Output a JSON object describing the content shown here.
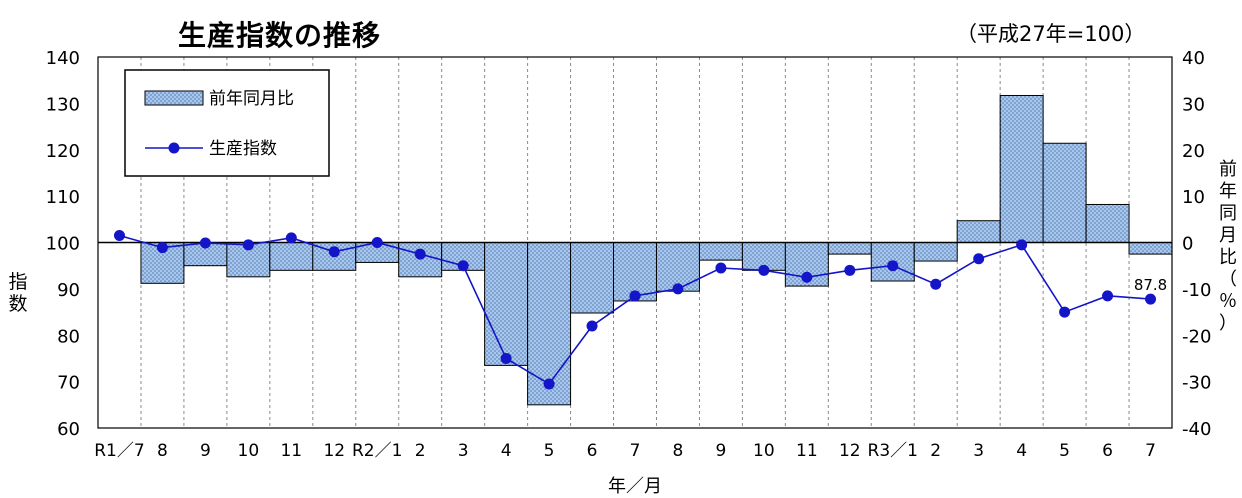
{
  "chart_data": {
    "type": "bar+line",
    "title": "生産指数の推移",
    "subtitle": "（平成27年=100）",
    "xlabel": "年／月",
    "ylabel_left": "指数",
    "ylabel_right": "前年同月比（％）",
    "categories": [
      "R1／7",
      "8",
      "9",
      "10",
      "11",
      "12",
      "R2／1",
      "2",
      "3",
      "4",
      "5",
      "6",
      "7",
      "8",
      "9",
      "10",
      "11",
      "12",
      "R3／1",
      "2",
      "3",
      "4",
      "5",
      "6",
      "7"
    ],
    "ylim_left": [
      60,
      140
    ],
    "yticks_left": [
      60,
      70,
      80,
      90,
      100,
      110,
      120,
      130,
      140
    ],
    "ylim_right": [
      -40,
      40
    ],
    "yticks_right": [
      -40,
      -30,
      -20,
      -10,
      0,
      10,
      20,
      30,
      40
    ],
    "grid": "vertical dashed",
    "legend_position": "top-left",
    "series": [
      {
        "name": "前年同月比",
        "type": "bar",
        "axis": "right",
        "color": "#a8c8f0",
        "values": [
          0,
          -8.8,
          -5.0,
          -7.4,
          -6.0,
          -6.0,
          -4.3,
          -7.4,
          -6.0,
          -26.5,
          -35.0,
          -15.2,
          -12.6,
          -10.5,
          -3.8,
          -6.0,
          -9.4,
          -2.5,
          -8.3,
          -4.0,
          4.7,
          31.7,
          21.4,
          8.2,
          -2.5
        ]
      },
      {
        "name": "生産指数",
        "type": "line",
        "axis": "left",
        "color": "#1414c8",
        "values": [
          101.5,
          98.9,
          99.9,
          99.5,
          101.0,
          98.0,
          100.0,
          97.5,
          95.0,
          75.0,
          69.5,
          82.0,
          88.5,
          90.0,
          94.5,
          94.0,
          92.5,
          94.0,
          95.0,
          91.0,
          96.5,
          99.5,
          85.0,
          88.5,
          87.8
        ]
      }
    ],
    "annotations": [
      {
        "category": "7",
        "text": "87.8"
      }
    ]
  }
}
